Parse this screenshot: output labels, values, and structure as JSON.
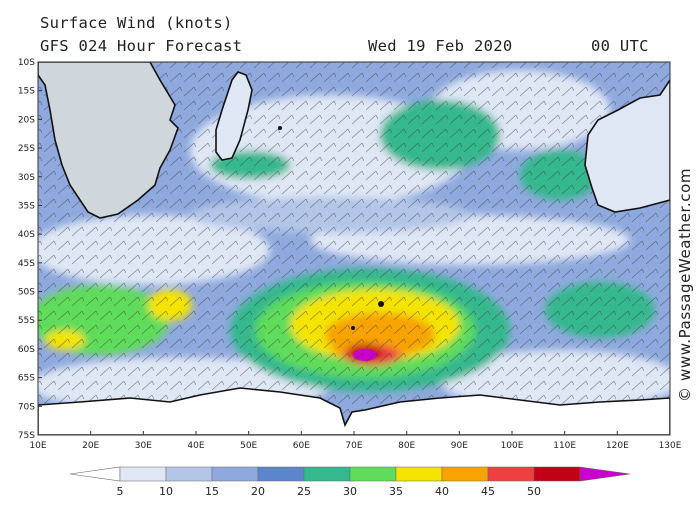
{
  "header": {
    "title": "Surface Wind (knots)",
    "subtitle": "GFS 024 Hour Forecast",
    "date": "Wed 19 Feb 2020",
    "time": "00 UTC"
  },
  "credit": "© www.PassageWeather.com",
  "map": {
    "lat_labels": [
      "10S",
      "15S",
      "20S",
      "25S",
      "30S",
      "35S",
      "40S",
      "45S",
      "50S",
      "55S",
      "60S",
      "65S",
      "70S",
      "75S"
    ],
    "lon_labels": [
      "10E",
      "20E",
      "30E",
      "40E",
      "50E",
      "60E",
      "70E",
      "80E",
      "90E",
      "100E",
      "110E",
      "120E",
      "130E"
    ],
    "lat_range": [
      -10,
      -75
    ],
    "lon_range": [
      10,
      130
    ],
    "features": [
      "Southern Africa",
      "Madagascar",
      "Western Australia",
      "Antarctica coast",
      "Storm center near 53S 73E"
    ]
  },
  "legend": {
    "ticks": [
      "5",
      "10",
      "15",
      "20",
      "25",
      "30",
      "35",
      "40",
      "45",
      "50"
    ],
    "colors": [
      "#ffffff",
      "#dfe7f5",
      "#b3c6e8",
      "#8fa9de",
      "#5b86cc",
      "#35b88e",
      "#5fdc5a",
      "#f4e400",
      "#f7a300",
      "#ef4040",
      "#c20016",
      "#cc00cc"
    ]
  }
}
